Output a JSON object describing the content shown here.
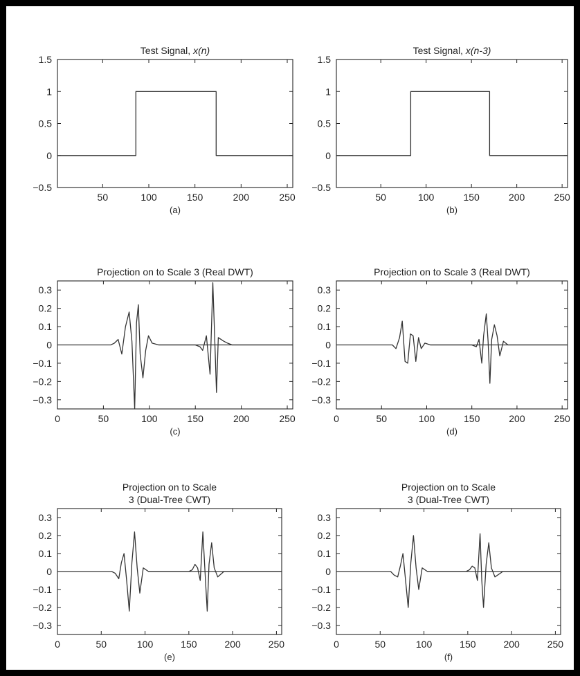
{
  "chart_data": [
    {
      "panel": "a",
      "type": "line",
      "title_prefix": "Test Signal, ",
      "title_var": "x(n)",
      "caption": "(a)",
      "xlim": [
        1,
        256
      ],
      "ylim": [
        -0.5,
        1.5
      ],
      "xticks": [
        50,
        100,
        150,
        200,
        250
      ],
      "yticks": [
        -0.5,
        0,
        0.5,
        1,
        1.5
      ],
      "ytick_labels": [
        "−0.5",
        "0",
        "0.5",
        "1",
        "1.5"
      ],
      "series": [
        {
          "x": [
            1,
            86,
            86,
            173,
            173,
            256
          ],
          "y": [
            0,
            0,
            1,
            1,
            0,
            0
          ]
        }
      ]
    },
    {
      "panel": "b",
      "type": "line",
      "title_prefix": "Test Signal, ",
      "title_var": "x(n-3)",
      "caption": "(b)",
      "xlim": [
        1,
        256
      ],
      "ylim": [
        -0.5,
        1.5
      ],
      "xticks": [
        50,
        100,
        150,
        200,
        250
      ],
      "yticks": [
        -0.5,
        0,
        0.5,
        1,
        1.5
      ],
      "ytick_labels": [
        "−0.5",
        "0",
        "0.5",
        "1",
        "1.5"
      ],
      "series": [
        {
          "x": [
            1,
            83,
            83,
            170,
            170,
            256
          ],
          "y": [
            0,
            0,
            1,
            1,
            0,
            0
          ]
        }
      ]
    },
    {
      "panel": "c",
      "type": "line",
      "title_lines": [
        "Projection on to Scale 3 (Real DWT)"
      ],
      "caption": "(c)",
      "xlim": [
        0,
        256
      ],
      "ylim": [
        -0.35,
        0.35
      ],
      "xticks": [
        0,
        50,
        100,
        150,
        200,
        250
      ],
      "yticks": [
        0.3,
        0.2,
        0.1,
        0,
        -0.1,
        -0.2,
        -0.3
      ],
      "ytick_labels": [
        "0.3",
        "0.2",
        "0.1",
        "0",
        "−0.1",
        "−0.2",
        "−0.3"
      ],
      "series": [
        {
          "x": [
            0,
            58,
            62,
            66,
            70,
            74,
            78,
            81,
            84,
            86,
            88,
            90,
            93,
            96,
            99,
            103,
            110,
            256
          ],
          "y": [
            0,
            0,
            0.01,
            0.03,
            -0.05,
            0.1,
            0.18,
            0.02,
            -0.35,
            0.12,
            0.22,
            -0.05,
            -0.18,
            -0.03,
            0.05,
            0.01,
            0,
            0
          ]
        },
        {
          "x": [
            110,
            150,
            155,
            158,
            162,
            166,
            169,
            171,
            173,
            175,
            178,
            181,
            185,
            190,
            256
          ],
          "y": [
            0,
            0,
            -0.01,
            -0.03,
            0.05,
            -0.16,
            0.34,
            0.05,
            -0.26,
            0.04,
            0.03,
            0.02,
            0.01,
            0,
            0
          ]
        }
      ]
    },
    {
      "panel": "d",
      "type": "line",
      "title_lines": [
        "Projection on to Scale 3 (Real DWT)"
      ],
      "caption": "(d)",
      "xlim": [
        0,
        256
      ],
      "ylim": [
        -0.35,
        0.35
      ],
      "xticks": [
        0,
        50,
        100,
        150,
        200,
        250
      ],
      "yticks": [
        0.3,
        0.2,
        0.1,
        0,
        -0.1,
        -0.2,
        -0.3
      ],
      "ytick_labels": [
        "0.3",
        "0.2",
        "0.1",
        "0",
        "−0.1",
        "−0.2",
        "−0.3"
      ],
      "series": [
        {
          "x": [
            0,
            62,
            66,
            70,
            73,
            76,
            79,
            82,
            85,
            88,
            91,
            94,
            98,
            104,
            256
          ],
          "y": [
            0,
            0,
            -0.02,
            0.04,
            0.13,
            -0.09,
            -0.1,
            0.06,
            0.05,
            -0.09,
            0.04,
            -0.02,
            0.01,
            0,
            0
          ]
        },
        {
          "x": [
            104,
            150,
            155,
            158,
            161,
            163,
            166,
            168,
            170,
            172,
            175,
            178,
            181,
            185,
            190,
            256
          ],
          "y": [
            0,
            0,
            -0.01,
            0.03,
            -0.1,
            0.05,
            0.17,
            0.02,
            -0.21,
            0.03,
            0.11,
            0.05,
            -0.06,
            0.02,
            0,
            0
          ]
        }
      ]
    },
    {
      "panel": "e",
      "type": "line",
      "title_lines": [
        "Projection on to Scale",
        "3 (Dual-Tree ℂWT)"
      ],
      "caption": "(e)",
      "xlim": [
        0,
        256
      ],
      "ylim": [
        -0.35,
        0.35
      ],
      "xticks": [
        0,
        50,
        100,
        150,
        200,
        250
      ],
      "yticks": [
        0.3,
        0.2,
        0.1,
        0,
        -0.1,
        -0.2,
        -0.3
      ],
      "ytick_labels": [
        "0.3",
        "0.2",
        "0.1",
        "0",
        "−0.1",
        "−0.2",
        "−0.3"
      ],
      "series": [
        {
          "x": [
            0,
            62,
            66,
            70,
            73,
            76,
            79,
            82,
            85,
            88,
            91,
            94,
            98,
            104,
            256
          ],
          "y": [
            0,
            0,
            -0.01,
            -0.04,
            0.05,
            0.1,
            -0.05,
            -0.22,
            0.05,
            0.22,
            0.02,
            -0.12,
            0.02,
            0,
            0
          ]
        },
        {
          "x": [
            104,
            150,
            154,
            157,
            160,
            163,
            166,
            169,
            171,
            173,
            176,
            179,
            183,
            190,
            256
          ],
          "y": [
            0,
            0,
            0.01,
            0.04,
            0.02,
            -0.05,
            0.22,
            -0.05,
            -0.22,
            0.04,
            0.16,
            0.02,
            -0.03,
            0,
            0
          ]
        }
      ]
    },
    {
      "panel": "f",
      "type": "line",
      "title_lines": [
        "Projection on to Scale",
        "3 (Dual-Tree ℂWT)"
      ],
      "caption": "(f)",
      "xlim": [
        0,
        256
      ],
      "ylim": [
        -0.35,
        0.35
      ],
      "xticks": [
        0,
        50,
        100,
        150,
        200,
        250
      ],
      "yticks": [
        0.3,
        0.2,
        0.1,
        0,
        -0.1,
        -0.2,
        -0.3
      ],
      "ytick_labels": [
        "0.3",
        "0.2",
        "0.1",
        "0",
        "−0.1",
        "−0.2",
        "−0.3"
      ],
      "series": [
        {
          "x": [
            0,
            62,
            66,
            70,
            73,
            76,
            79,
            82,
            85,
            88,
            91,
            94,
            98,
            104,
            256
          ],
          "y": [
            0,
            0,
            -0.02,
            -0.03,
            0.03,
            0.1,
            -0.05,
            -0.2,
            0.05,
            0.2,
            0.02,
            -0.1,
            0.02,
            0,
            0
          ]
        },
        {
          "x": [
            104,
            148,
            152,
            155,
            158,
            161,
            164,
            166,
            168,
            171,
            174,
            177,
            181,
            190,
            256
          ],
          "y": [
            0,
            0,
            0.01,
            0.03,
            0.02,
            -0.05,
            0.21,
            -0.05,
            -0.2,
            0.04,
            0.16,
            0.02,
            -0.03,
            0,
            0
          ]
        }
      ]
    }
  ]
}
